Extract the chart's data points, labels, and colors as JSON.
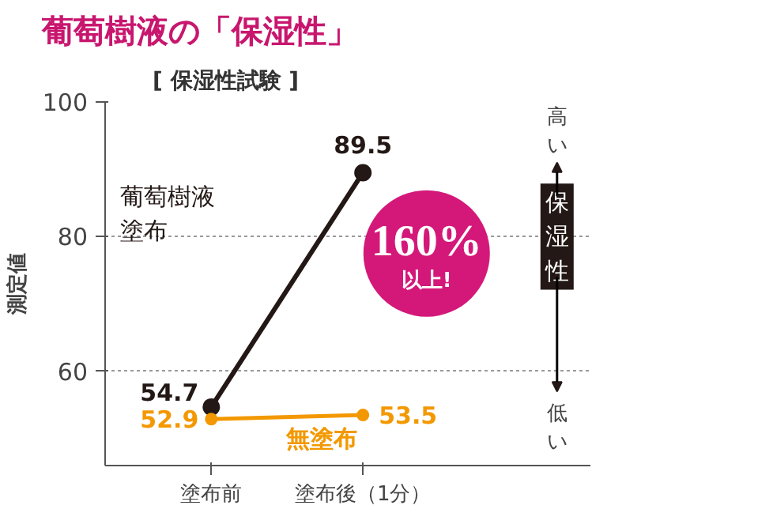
{
  "chart_data": {
    "type": "line",
    "title": "葡萄樹液の「保湿性」",
    "subtitle": "[ 保湿性試験 ]",
    "ylabel": "測定値",
    "categories": [
      "塗布前",
      "塗布後（1分）"
    ],
    "series": [
      {
        "name": "葡萄樹液塗布",
        "color": "#231815",
        "values": [
          54.7,
          89.5
        ]
      },
      {
        "name": "無塗布",
        "color": "#f39800",
        "values": [
          52.9,
          53.5
        ]
      }
    ],
    "ylim": [
      46,
      100
    ],
    "yticks": [
      60,
      80,
      100
    ],
    "grid": "y",
    "marker": "circle",
    "line_style": "solid",
    "data_labels": true,
    "annotations": [
      "160%以上!",
      "高い",
      "保湿性",
      "低い"
    ]
  }
}
